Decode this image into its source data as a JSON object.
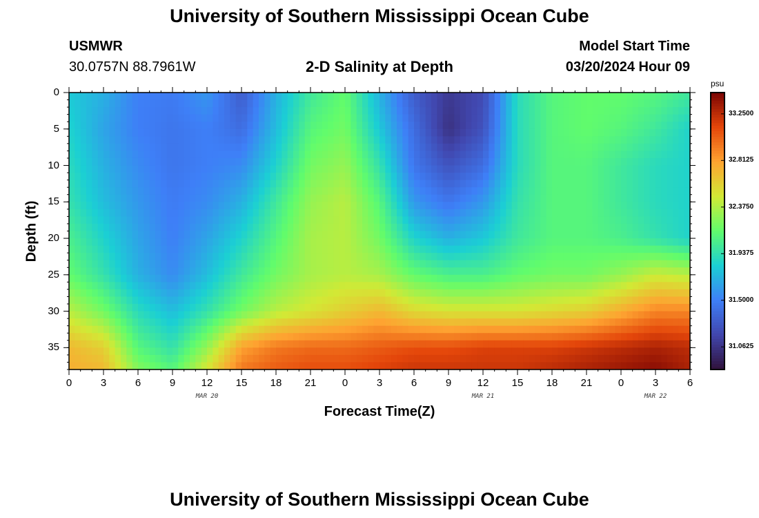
{
  "header": {
    "title": "University of Southern Mississippi Ocean Cube",
    "station": "USMWR",
    "coords": "30.0757N  88.7961W",
    "chart_title": "2-D Salinity at Depth",
    "model_label": "Model Start Time",
    "model_time": "03/20/2024 Hour 09"
  },
  "footer": {
    "title": "University of Southern Mississippi Ocean Cube"
  },
  "colors": {
    "scale": [
      "#30123b",
      "#4146ad",
      "#3e7ff7",
      "#1bcfd4",
      "#61fc6c",
      "#d2e935",
      "#fea331",
      "#e4460a",
      "#7a0403"
    ]
  },
  "chart_data": {
    "type": "heatmap",
    "title": "2-D Salinity at Depth",
    "xlabel": "Forecast Time(Z)",
    "ylabel": "Depth (ft)",
    "x_range_hours": [
      0,
      54
    ],
    "ylim": [
      0,
      38
    ],
    "y_ticks": [
      0,
      5,
      10,
      15,
      20,
      25,
      30,
      35
    ],
    "x_ticks": [
      {
        "hour": 0,
        "label": "0"
      },
      {
        "hour": 3,
        "label": "3"
      },
      {
        "hour": 6,
        "label": "6"
      },
      {
        "hour": 9,
        "label": "9"
      },
      {
        "hour": 12,
        "label": "12"
      },
      {
        "hour": 15,
        "label": "15"
      },
      {
        "hour": 18,
        "label": "18"
      },
      {
        "hour": 21,
        "label": "21"
      },
      {
        "hour": 24,
        "label": "0"
      },
      {
        "hour": 27,
        "label": "3"
      },
      {
        "hour": 30,
        "label": "6"
      },
      {
        "hour": 33,
        "label": "9"
      },
      {
        "hour": 36,
        "label": "12"
      },
      {
        "hour": 39,
        "label": "15"
      },
      {
        "hour": 42,
        "label": "18"
      },
      {
        "hour": 45,
        "label": "21"
      },
      {
        "hour": 48,
        "label": "0"
      },
      {
        "hour": 51,
        "label": "3"
      },
      {
        "hour": 54,
        "label": "6"
      }
    ],
    "date_labels": [
      {
        "hour": 12,
        "label": "MAR 20"
      },
      {
        "hour": 36,
        "label": "MAR 21"
      },
      {
        "hour": 51,
        "label": "MAR 22"
      }
    ],
    "colorbar": {
      "unit": "psu",
      "vmin": 30.85,
      "vmax": 33.45,
      "ticks": [
        {
          "value": 33.25,
          "label": "33.2500"
        },
        {
          "value": 32.8125,
          "label": "32.8125"
        },
        {
          "value": 32.375,
          "label": "32.3750"
        },
        {
          "value": 31.9375,
          "label": "31.9375"
        },
        {
          "value": 31.5,
          "label": "31.5000"
        },
        {
          "value": 31.0625,
          "label": "31.0625"
        }
      ]
    },
    "grid": {
      "hours": [
        0,
        3,
        6,
        9,
        12,
        15,
        18,
        21,
        24,
        27,
        30,
        33,
        36,
        39,
        42,
        45,
        48,
        51,
        54
      ],
      "depths": [
        0,
        5,
        10,
        15,
        20,
        25,
        30,
        35,
        38
      ],
      "values": [
        [
          31.8,
          31.7,
          31.5,
          31.48,
          31.6,
          31.3,
          31.7,
          32.0,
          32.15,
          31.7,
          31.3,
          31.1,
          31.2,
          31.9,
          32.1,
          32.15,
          32.15,
          32.1,
          32.0
        ],
        [
          31.85,
          31.65,
          31.5,
          31.45,
          31.5,
          31.4,
          31.75,
          32.1,
          32.2,
          31.8,
          31.4,
          31.05,
          31.25,
          31.9,
          32.1,
          32.15,
          32.1,
          32.0,
          31.85
        ],
        [
          31.9,
          31.7,
          31.55,
          31.45,
          31.5,
          31.55,
          31.85,
          32.2,
          32.3,
          31.95,
          31.45,
          31.25,
          31.4,
          31.9,
          32.1,
          32.1,
          32.0,
          31.9,
          31.85
        ],
        [
          31.95,
          31.75,
          31.6,
          31.48,
          31.55,
          31.7,
          32.0,
          32.3,
          32.4,
          32.1,
          31.6,
          31.45,
          31.6,
          31.95,
          32.1,
          32.1,
          32.0,
          31.9,
          31.85
        ],
        [
          32.05,
          31.85,
          31.65,
          31.5,
          31.65,
          31.85,
          32.1,
          32.35,
          32.4,
          32.2,
          31.85,
          31.7,
          31.8,
          32.0,
          32.1,
          32.1,
          32.05,
          31.95,
          31.85
        ],
        [
          32.15,
          31.95,
          31.7,
          31.55,
          31.75,
          32.0,
          32.2,
          32.35,
          32.4,
          32.35,
          32.15,
          32.05,
          32.05,
          32.15,
          32.2,
          32.2,
          32.3,
          32.45,
          32.4
        ],
        [
          32.4,
          32.2,
          31.9,
          31.75,
          31.95,
          32.2,
          32.4,
          32.5,
          32.6,
          32.7,
          32.55,
          32.5,
          32.5,
          32.5,
          32.55,
          32.6,
          32.75,
          32.9,
          32.9
        ],
        [
          32.7,
          32.6,
          32.1,
          31.95,
          32.3,
          32.8,
          32.95,
          33.0,
          33.0,
          33.05,
          33.1,
          33.1,
          33.15,
          33.15,
          33.15,
          33.2,
          33.25,
          33.3,
          33.25
        ],
        [
          32.75,
          32.7,
          32.25,
          32.1,
          32.5,
          32.95,
          33.05,
          33.1,
          33.1,
          33.15,
          33.2,
          33.2,
          33.2,
          33.2,
          33.25,
          33.3,
          33.35,
          33.4,
          33.3
        ]
      ]
    }
  }
}
